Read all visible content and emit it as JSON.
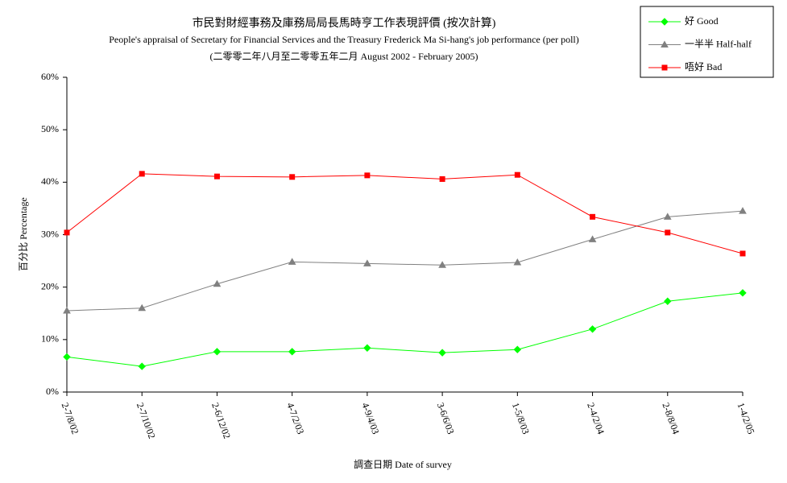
{
  "chart_data": {
    "type": "line",
    "title": "市民對財經事務及庫務局局長馬時亨工作表現評價 (按次計算)",
    "subtitle": "People's appraisal of Secretary for Financial Services and the Treasury Frederick Ma Si-hang's job performance (per poll)",
    "subtitle2": "(二零零二年八月至二零零五年二月 August 2002 - February 2005)",
    "x_label": "調查日期 Date of survey",
    "y_label": "百分比 Percentage",
    "categories": [
      "2-7/8/02",
      "2-7/10/02",
      "2-6/12/02",
      "4-7/2/03",
      "4-9/4/03",
      "3-6/6/03",
      "1-5/8/03",
      "2-4/2/04",
      "2-8/8/04",
      "1-4/2/05"
    ],
    "series": [
      {
        "name": "好 Good",
        "color": "#00ff00",
        "marker": "diamond",
        "values": [
          6.7,
          4.9,
          7.7,
          7.7,
          8.4,
          7.5,
          8.1,
          12.0,
          17.3,
          18.9
        ]
      },
      {
        "name": "一半半 Half-half",
        "color": "#808080",
        "marker": "triangle",
        "values": [
          15.5,
          16.0,
          20.6,
          24.8,
          24.5,
          24.2,
          24.7,
          29.1,
          33.4,
          34.5
        ]
      },
      {
        "name": "唔好 Bad",
        "color": "#ff0000",
        "marker": "square",
        "values": [
          30.4,
          41.6,
          41.1,
          41.0,
          41.3,
          40.6,
          41.4,
          33.4,
          30.4,
          26.4
        ]
      }
    ],
    "ylim": [
      0,
      60
    ],
    "yticks": [
      {
        "value": 0,
        "label": "0%"
      },
      {
        "value": 10,
        "label": "10%"
      },
      {
        "value": 20,
        "label": "20%"
      },
      {
        "value": 30,
        "label": "30%"
      },
      {
        "value": 40,
        "label": "40%"
      },
      {
        "value": 50,
        "label": "50%"
      },
      {
        "value": 60,
        "label": "60%"
      }
    ],
    "grid": false,
    "legend": "top-right"
  }
}
